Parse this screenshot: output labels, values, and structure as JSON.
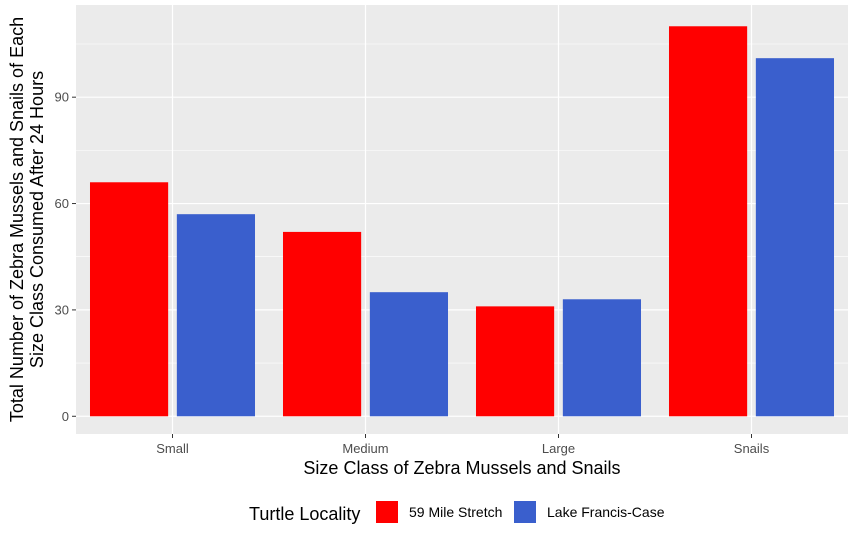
{
  "chart_data": {
    "type": "bar",
    "title": "",
    "xlabel": "Size Class of Zebra Mussels and Snails",
    "ylabel_lines": [
      "Total Number of Zebra Mussels and Snails of Each",
      "Size Class Consumed After 24 Hours"
    ],
    "categories": [
      "Small",
      "Medium",
      "Large",
      "Snails"
    ],
    "series": [
      {
        "name": "59 Mile Stretch",
        "color": "#ff0000",
        "values": [
          66,
          52,
          31,
          110
        ]
      },
      {
        "name": "Lake Francis-Case",
        "color": "#3a5fcd",
        "values": [
          57,
          35,
          33,
          101
        ]
      }
    ],
    "ylim": [
      -5,
      116
    ],
    "yticks": [
      0,
      30,
      60,
      90
    ],
    "grid": true,
    "legend": {
      "title": "Turtle Locality",
      "placement": "bottom"
    },
    "panel_color": "#ebebeb",
    "grid_color": "#ffffff"
  }
}
